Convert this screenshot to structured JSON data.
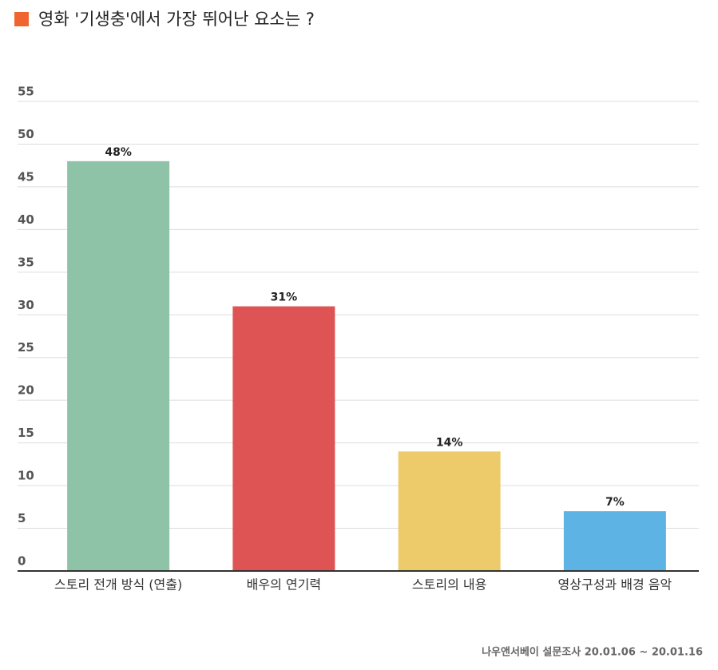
{
  "chart_data": {
    "type": "bar",
    "title": "영화 '기생충'에서 가장 뛰어난 요소는 ?",
    "categories": [
      "스토리 전개 방식 (연출)",
      "배우의 연기력",
      "스토리의 내용",
      "영상구성과 배경 음악"
    ],
    "values": [
      48,
      31,
      14,
      7
    ],
    "value_labels": [
      "48%",
      "31%",
      "14%",
      "7%"
    ],
    "colors": [
      "#8fc3a7",
      "#de5455",
      "#eecb6a",
      "#5db3e4"
    ],
    "ylim": [
      0,
      55
    ],
    "yticks": [
      0,
      5,
      10,
      15,
      20,
      25,
      30,
      35,
      40,
      45,
      50,
      55
    ],
    "grid": true,
    "source": "나우앤서베이 설문조사 20.01.06 ~ 20.01.16"
  }
}
